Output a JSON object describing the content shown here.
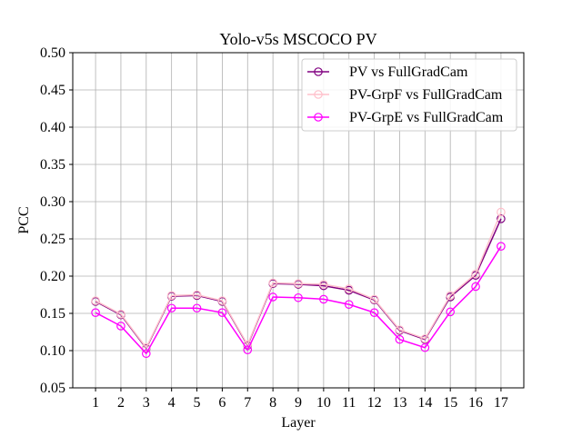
{
  "chart_data": {
    "type": "line",
    "title": "Yolo-v5s MSCOCO PV",
    "xlabel": "Layer",
    "ylabel": "PCC",
    "x": [
      1,
      2,
      3,
      4,
      5,
      6,
      7,
      8,
      9,
      10,
      11,
      12,
      13,
      14,
      15,
      16,
      17
    ],
    "x_ticks": [
      "1",
      "2",
      "3",
      "4",
      "5",
      "6",
      "7",
      "8",
      "9",
      "10",
      "11",
      "12",
      "13",
      "14",
      "15",
      "16",
      "17"
    ],
    "xlim": [
      0.1,
      17.9
    ],
    "ylim": [
      0.05,
      0.5
    ],
    "y_ticks": [
      "0.05",
      "0.10",
      "0.15",
      "0.20",
      "0.25",
      "0.30",
      "0.35",
      "0.40",
      "0.45",
      "0.50"
    ],
    "grid": true,
    "legend_position": "top-right",
    "marker": "open-circle",
    "series": [
      {
        "name": "PV vs FullGradCam",
        "color": "#800080",
        "values": [
          0.166,
          0.148,
          0.103,
          0.173,
          0.174,
          0.166,
          0.107,
          0.19,
          0.189,
          0.187,
          0.181,
          0.168,
          0.127,
          0.115,
          0.172,
          0.201,
          0.277
        ]
      },
      {
        "name": "PV-GrpF vs FullGradCam",
        "color": "#ffc0cb",
        "values": [
          0.167,
          0.149,
          0.104,
          0.174,
          0.175,
          0.167,
          0.108,
          0.191,
          0.19,
          0.189,
          0.183,
          0.169,
          0.128,
          0.116,
          0.174,
          0.203,
          0.286
        ]
      },
      {
        "name": "PV-GrpE vs FullGradCam",
        "color": "#ff00ff",
        "values": [
          0.151,
          0.133,
          0.096,
          0.157,
          0.157,
          0.151,
          0.101,
          0.172,
          0.171,
          0.169,
          0.162,
          0.151,
          0.115,
          0.104,
          0.152,
          0.186,
          0.24
        ]
      }
    ]
  }
}
